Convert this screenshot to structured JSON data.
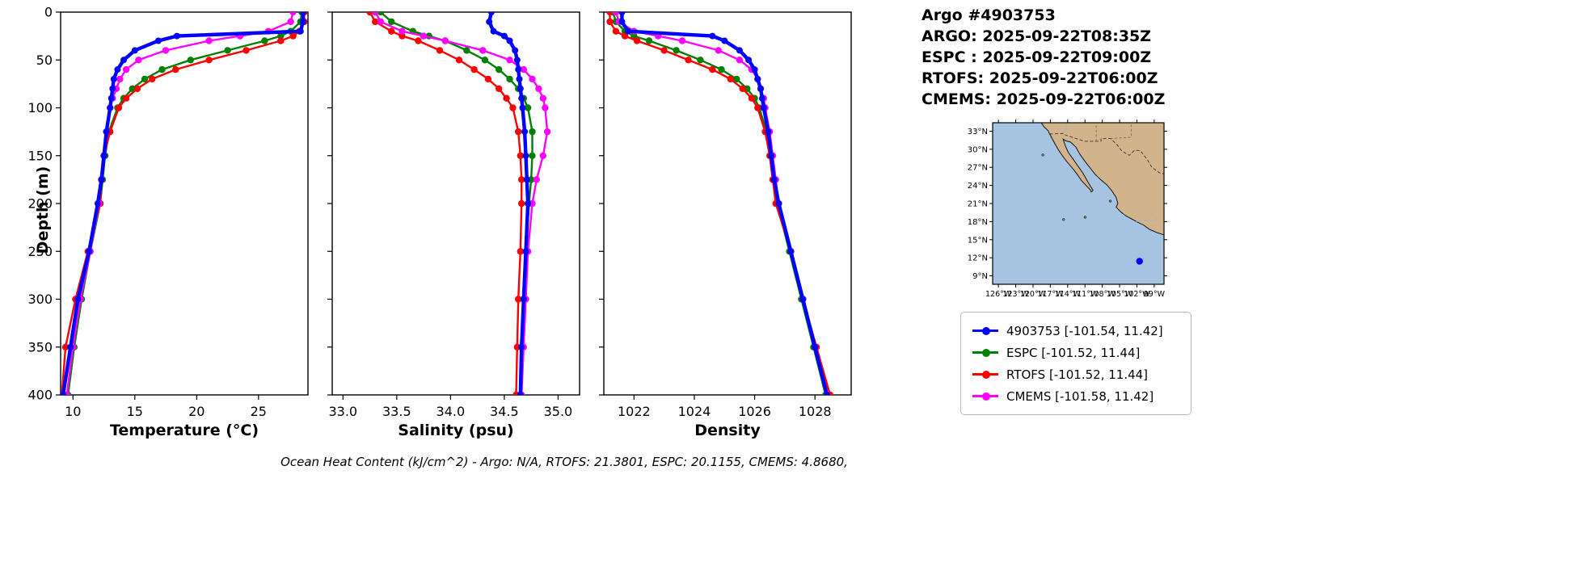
{
  "header": {
    "title": "Argo #4903753",
    "lines": [
      "ARGO: 2025-09-22T08:35Z",
      "ESPC : 2025-09-22T09:00Z",
      "RTOFS: 2025-09-22T06:00Z",
      "CMEMS: 2025-09-22T06:00Z"
    ]
  },
  "footer": {
    "ohc_text": "Ocean Heat Content (kJ/cm^2) - Argo: N/A,  RTOFS: 21.3801,  ESPC: 20.1155,  CMEMS: 4.8680,",
    "values": {
      "argo": "N/A",
      "rtofs": 21.3801,
      "espc": 20.1155,
      "cmems": 4.868
    }
  },
  "legend": {
    "entries": [
      {
        "name": "4903753",
        "label": "4903753 [-101.54, 11.42]",
        "color": "#0000ff"
      },
      {
        "name": "ESPC",
        "label": "ESPC [-101.52, 11.44]",
        "color": "#008000"
      },
      {
        "name": "RTOFS",
        "label": "RTOFS [-101.52, 11.44]",
        "color": "#ff0000"
      },
      {
        "name": "CMEMS",
        "label": "CMEMS [-101.58, 11.42]",
        "color": "#ff00ff"
      }
    ]
  },
  "map": {
    "lat_tick_values": [
      33,
      30,
      27,
      24,
      21,
      18,
      15,
      12,
      9
    ],
    "lat_tick_labels": [
      "33°N",
      "30°N",
      "27°N",
      "24°N",
      "21°N",
      "18°N",
      "15°N",
      "12°N",
      "9°N"
    ],
    "lon_tick_values": [
      -126,
      -123,
      -120,
      -117,
      -114,
      -111,
      -108,
      -105,
      -102,
      -99
    ],
    "lon_tick_labels": [
      "126°W",
      "123°W",
      "120°W",
      "117°W",
      "114°W",
      "111°W",
      "108°W",
      "105°W",
      "102°W",
      "99°W"
    ],
    "extent": {
      "lon": [
        -127.0,
        -97.3
      ],
      "lat": [
        7.6,
        34.4
      ]
    },
    "float_position": {
      "lon": -101.54,
      "lat": 11.42
    },
    "ocean_color": "#a7c3e2",
    "land_color": "#d2b48c",
    "dot_color": "#0000ff"
  },
  "chart_data": {
    "type": "line",
    "orientation": "vertical-profile",
    "ylabel": "Depth (m)",
    "ylim": [
      0,
      400
    ],
    "yticks": [
      0,
      50,
      100,
      150,
      200,
      250,
      300,
      350,
      400
    ],
    "depths": [
      0,
      10,
      20,
      25,
      30,
      40,
      50,
      60,
      70,
      80,
      90,
      100,
      125,
      150,
      175,
      200,
      250,
      300,
      350,
      400
    ],
    "panels": [
      {
        "name": "temperature",
        "xlabel": "Temperature (°C)",
        "xlim": [
          9,
          29
        ],
        "xticks": [
          10,
          15,
          20,
          25
        ],
        "xtick_labels": [
          "10",
          "15",
          "20",
          "25"
        ],
        "series": [
          {
            "name": "4903753",
            "color": "#0000ff",
            "values": [
              28.6,
              28.6,
              28.4,
              18.4,
              16.9,
              15.0,
              14.1,
              13.6,
              13.3,
              13.2,
              13.1,
              13.0,
              12.7,
              12.5,
              12.3,
              12.0,
              11.3,
              10.4,
              9.8,
              9.2
            ]
          },
          {
            "name": "ESPC",
            "color": "#008000",
            "values": [
              28.5,
              28.4,
              27.6,
              26.8,
              25.5,
              22.5,
              19.5,
              17.2,
              15.8,
              14.8,
              14.1,
              13.6,
              12.9,
              12.6,
              12.4,
              12.2,
              11.4,
              10.7,
              10.1,
              9.6
            ]
          },
          {
            "name": "RTOFS",
            "color": "#ff0000",
            "values": [
              28.7,
              28.7,
              28.3,
              27.8,
              26.8,
              24.0,
              21.0,
              18.3,
              16.4,
              15.2,
              14.3,
              13.7,
              13.0,
              12.5,
              12.3,
              12.2,
              11.2,
              10.2,
              9.4,
              9.1
            ]
          },
          {
            "name": "CMEMS",
            "color": "#ff00ff",
            "values": [
              27.8,
              27.6,
              25.8,
              23.5,
              21.0,
              17.5,
              15.3,
              14.3,
              13.8,
              13.5,
              13.2,
              13.0,
              12.7,
              12.5,
              12.3,
              12.1,
              11.4,
              10.6,
              10.0,
              9.5
            ]
          }
        ]
      },
      {
        "name": "salinity",
        "xlabel": "Salinity (psu)",
        "xlim": [
          32.9,
          35.2
        ],
        "xticks": [
          33.0,
          33.5,
          34.0,
          34.5,
          35.0
        ],
        "xtick_labels": [
          "33.0",
          "33.5",
          "34.0",
          "34.5",
          "35.0"
        ],
        "series": [
          {
            "name": "4903753",
            "color": "#0000ff",
            "values": [
              34.38,
              34.36,
              34.4,
              34.5,
              34.55,
              34.6,
              34.62,
              34.63,
              34.64,
              34.65,
              34.66,
              34.67,
              34.69,
              34.7,
              34.71,
              34.72,
              34.7,
              34.68,
              34.66,
              34.65
            ]
          },
          {
            "name": "ESPC",
            "color": "#008000",
            "values": [
              33.35,
              33.45,
              33.65,
              33.8,
              33.95,
              34.15,
              34.32,
              34.45,
              34.55,
              34.63,
              34.68,
              34.72,
              34.76,
              34.76,
              34.75,
              34.73,
              34.7,
              34.68,
              34.66,
              34.65
            ]
          },
          {
            "name": "RTOFS",
            "color": "#ff0000",
            "values": [
              33.25,
              33.3,
              33.45,
              33.55,
              33.7,
              33.9,
              34.08,
              34.22,
              34.35,
              34.45,
              34.52,
              34.58,
              34.63,
              34.65,
              34.66,
              34.66,
              34.65,
              34.63,
              34.62,
              34.61
            ]
          },
          {
            "name": "CMEMS",
            "color": "#ff00ff",
            "values": [
              33.3,
              33.35,
              33.55,
              33.75,
              33.95,
              34.3,
              34.55,
              34.68,
              34.76,
              34.82,
              34.86,
              34.88,
              34.9,
              34.86,
              34.8,
              34.76,
              34.72,
              34.7,
              34.68,
              34.66
            ]
          }
        ]
      },
      {
        "name": "density",
        "xlabel": "Density",
        "xlim": [
          1021,
          1029.2
        ],
        "xticks": [
          1022,
          1024,
          1026,
          1028
        ],
        "xtick_labels": [
          "1022",
          "1024",
          "1026",
          "1028"
        ],
        "series": [
          {
            "name": "4903753",
            "color": "#0000ff",
            "values": [
              1021.6,
              1021.6,
              1021.8,
              1024.6,
              1025.0,
              1025.5,
              1025.8,
              1026.0,
              1026.1,
              1026.2,
              1026.25,
              1026.3,
              1026.45,
              1026.55,
              1026.65,
              1026.8,
              1027.2,
              1027.6,
              1028.0,
              1028.4
            ]
          },
          {
            "name": "ESPC",
            "color": "#008000",
            "values": [
              1021.3,
              1021.4,
              1021.7,
              1022.0,
              1022.5,
              1023.4,
              1024.2,
              1024.9,
              1025.4,
              1025.75,
              1026.0,
              1026.15,
              1026.4,
              1026.5,
              1026.6,
              1026.75,
              1027.15,
              1027.55,
              1027.95,
              1028.35
            ]
          },
          {
            "name": "RTOFS",
            "color": "#ff0000",
            "values": [
              1021.2,
              1021.2,
              1021.4,
              1021.7,
              1022.1,
              1023.0,
              1023.8,
              1024.6,
              1025.2,
              1025.6,
              1025.9,
              1026.1,
              1026.35,
              1026.5,
              1026.6,
              1026.7,
              1027.2,
              1027.6,
              1028.05,
              1028.5
            ]
          },
          {
            "name": "CMEMS",
            "color": "#ff00ff",
            "values": [
              1021.4,
              1021.5,
              1022.0,
              1022.8,
              1023.6,
              1024.8,
              1025.5,
              1025.9,
              1026.1,
              1026.2,
              1026.3,
              1026.35,
              1026.5,
              1026.6,
              1026.7,
              1026.8,
              1027.2,
              1027.6,
              1028.0,
              1028.4
            ]
          }
        ]
      }
    ]
  }
}
